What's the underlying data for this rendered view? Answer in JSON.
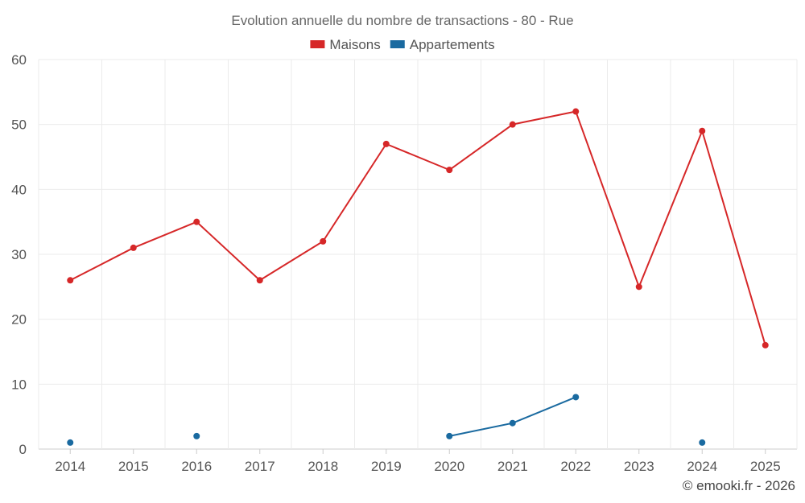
{
  "chart_data": {
    "type": "line",
    "title": "Evolution annuelle du nombre de transactions - 80 - Rue",
    "categories": [
      "2014",
      "2015",
      "2016",
      "2017",
      "2018",
      "2019",
      "2020",
      "2021",
      "2022",
      "2023",
      "2024",
      "2025"
    ],
    "ylim": [
      0,
      60
    ],
    "yticks": [
      0,
      10,
      20,
      30,
      40,
      50,
      60
    ],
    "grid": true,
    "legend_position": "top-center",
    "series": [
      {
        "name": "Maisons",
        "color": "#d62728",
        "values": [
          26,
          31,
          35,
          26,
          32,
          47,
          43,
          50,
          52,
          25,
          49,
          16
        ]
      },
      {
        "name": "Appartements",
        "color": "#1a6aa0",
        "values": [
          1,
          null,
          2,
          null,
          null,
          null,
          2,
          4,
          8,
          null,
          1,
          null
        ]
      }
    ],
    "credit": "© emooki.fr - 2026"
  }
}
